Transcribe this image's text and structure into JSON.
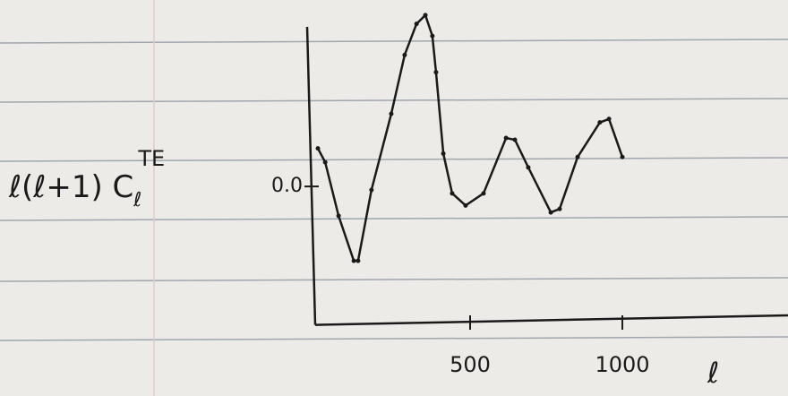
{
  "chart_data": {
    "type": "line",
    "ylabel": "ℓ(ℓ+1) C",
    "ylabel_sub": "ℓ",
    "ylabel_sup": "TE",
    "xlabel": "ℓ",
    "series": [
      {
        "color": "#1a1a1a",
        "x": [
          0,
          24,
          68,
          118,
          132,
          176,
          241,
          285,
          324,
          353,
          376,
          388,
          412,
          441,
          485,
          544,
          618,
          647,
          691,
          765,
          794,
          853,
          926,
          956,
          1000
        ],
        "values": [
          0.22,
          0.14,
          -0.17,
          -0.43,
          -0.43,
          -0.02,
          0.42,
          0.76,
          0.94,
          0.99,
          0.87,
          0.66,
          0.19,
          -0.04,
          -0.11,
          -0.04,
          0.28,
          0.27,
          0.11,
          -0.15,
          -0.13,
          0.17,
          0.37,
          0.39,
          0.17
        ]
      }
    ],
    "xlim": [
      0,
      1544
    ],
    "xticks": [
      500,
      1000
    ],
    "ylim": [
      -0.8,
      1.0
    ],
    "yticks": [
      {
        "value": 0,
        "label": "0.0"
      }
    ]
  }
}
